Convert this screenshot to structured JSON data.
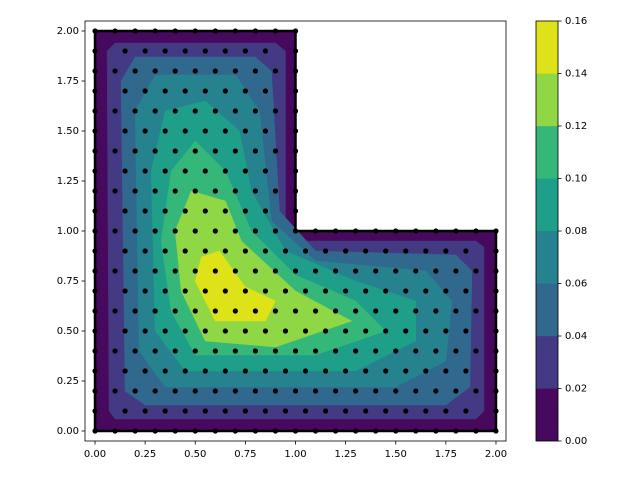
{
  "chart_data": {
    "type": "contour",
    "xlim": [
      -0.05,
      2.05
    ],
    "ylim": [
      -0.05,
      2.05
    ],
    "xticks": [
      {
        "value": 0,
        "label": "0.00"
      },
      {
        "value": 0.25,
        "label": "0.25"
      },
      {
        "value": 0.5,
        "label": "0.50"
      },
      {
        "value": 0.75,
        "label": "0.75"
      },
      {
        "value": 1,
        "label": "1.00"
      },
      {
        "value": 1.25,
        "label": "1.25"
      },
      {
        "value": 1.5,
        "label": "1.50"
      },
      {
        "value": 1.75,
        "label": "1.75"
      },
      {
        "value": 2,
        "label": "2.00"
      }
    ],
    "yticks": [
      {
        "value": 0,
        "label": "0.00"
      },
      {
        "value": 0.25,
        "label": "0.25"
      },
      {
        "value": 0.5,
        "label": "0.50"
      },
      {
        "value": 0.75,
        "label": "0.75"
      },
      {
        "value": 1,
        "label": "1.00"
      },
      {
        "value": 1.25,
        "label": "1.25"
      },
      {
        "value": 1.5,
        "label": "1.50"
      },
      {
        "value": 1.75,
        "label": "1.75"
      },
      {
        "value": 2,
        "label": "2.00"
      }
    ],
    "colorbar": {
      "lim": [
        0,
        0.16
      ],
      "ticks": [
        {
          "value": 0,
          "label": "0.00"
        },
        {
          "value": 0.02,
          "label": "0.02"
        },
        {
          "value": 0.04,
          "label": "0.04"
        },
        {
          "value": 0.06,
          "label": "0.06"
        },
        {
          "value": 0.08,
          "label": "0.08"
        },
        {
          "value": 0.1,
          "label": "0.10"
        },
        {
          "value": 0.12,
          "label": "0.12"
        },
        {
          "value": 0.14,
          "label": "0.14"
        },
        {
          "value": 0.16,
          "label": "0.16"
        }
      ]
    },
    "levels": [
      0,
      0.02,
      0.04,
      0.06,
      0.08,
      0.1,
      0.12,
      0.14,
      0.16
    ],
    "colors": [
      "#46095d",
      "#443983",
      "#31688e",
      "#26828e",
      "#1f9e89",
      "#35b779",
      "#8fd744",
      "#dde318"
    ],
    "regions": [
      {
        "x": [
          0,
          2,
          2,
          1,
          1,
          0
        ],
        "y": [
          0,
          0,
          1,
          1,
          2,
          2
        ]
      },
      {
        "x": [
          0.07,
          0.1,
          1.9,
          1.94,
          1.94,
          1.9,
          1.05,
          0.95,
          0.95,
          0.9,
          0.1,
          0.06
        ],
        "y": [
          0.1,
          0.06,
          0.06,
          0.1,
          0.92,
          0.95,
          0.95,
          1.05,
          1.9,
          1.94,
          1.94,
          1.9
        ]
      },
      {
        "x": [
          0.15,
          0.25,
          1.75,
          1.87,
          1.88,
          1.8,
          1.1,
          0.92,
          0.88,
          0.8,
          0.2,
          0.13
        ],
        "y": [
          0.2,
          0.13,
          0.13,
          0.22,
          0.8,
          0.88,
          0.9,
          1.1,
          1.8,
          1.87,
          1.87,
          1.75
        ]
      },
      {
        "x": [
          0.22,
          0.35,
          1.5,
          1.75,
          1.78,
          1.65,
          1.1,
          0.88,
          0.82,
          0.7,
          0.3,
          0.2
        ],
        "y": [
          0.4,
          0.22,
          0.22,
          0.35,
          0.65,
          0.8,
          0.85,
          1.05,
          1.6,
          1.78,
          1.78,
          1.6
        ]
      },
      {
        "x": [
          0.3,
          0.45,
          1.3,
          1.6,
          1.6,
          1.3,
          0.95,
          0.78,
          0.72,
          0.55,
          0.35,
          0.28
        ],
        "y": [
          0.5,
          0.3,
          0.3,
          0.45,
          0.65,
          0.75,
          0.9,
          1.2,
          1.5,
          1.65,
          1.6,
          1.3
        ]
      },
      {
        "x": [
          0.38,
          0.5,
          1.1,
          1.45,
          1.3,
          1.0,
          0.78,
          0.65,
          0.5,
          0.38,
          0.33
        ],
        "y": [
          0.6,
          0.38,
          0.38,
          0.5,
          0.65,
          0.78,
          1.0,
          1.3,
          1.45,
          1.3,
          0.95
        ]
      },
      {
        "x": [
          0.43,
          0.55,
          0.9,
          1.28,
          1.0,
          0.73,
          0.65,
          0.48,
          0.4
        ],
        "y": [
          0.7,
          0.45,
          0.42,
          0.55,
          0.7,
          0.95,
          1.15,
          1.2,
          1.0
        ]
      },
      {
        "x": [
          0.5,
          0.6,
          0.85,
          0.9,
          0.75,
          0.62,
          0.53
        ],
        "y": [
          0.75,
          0.55,
          0.55,
          0.65,
          0.72,
          0.9,
          0.87
        ]
      }
    ],
    "mesh_rows": [
      {
        "y": 0,
        "x": [
          0,
          0.1,
          0.2,
          0.3,
          0.4,
          0.5,
          0.6,
          0.7,
          0.8,
          0.9,
          1,
          1.1,
          1.2,
          1.3,
          1.4,
          1.5,
          1.6,
          1.7,
          1.8,
          1.9,
          2
        ]
      },
      {
        "y": 0.1,
        "x": [
          0,
          0.15,
          0.25,
          0.35,
          0.45,
          0.55,
          0.65,
          0.75,
          0.85,
          0.95,
          1.05,
          1.15,
          1.25,
          1.35,
          1.45,
          1.55,
          1.65,
          1.75,
          1.85,
          2
        ]
      },
      {
        "y": 0.2,
        "x": [
          0,
          0.1,
          0.2,
          0.3,
          0.4,
          0.5,
          0.6,
          0.7,
          0.8,
          0.9,
          1,
          1.1,
          1.2,
          1.3,
          1.4,
          1.5,
          1.6,
          1.7,
          1.8,
          1.9,
          2
        ]
      },
      {
        "y": 0.3,
        "x": [
          0,
          0.15,
          0.25,
          0.35,
          0.45,
          0.55,
          0.65,
          0.75,
          0.85,
          0.95,
          1.05,
          1.15,
          1.25,
          1.35,
          1.45,
          1.55,
          1.65,
          1.75,
          1.85,
          2
        ]
      },
      {
        "y": 0.4,
        "x": [
          0,
          0.1,
          0.2,
          0.3,
          0.4,
          0.5,
          0.6,
          0.7,
          0.8,
          0.9,
          1,
          1.1,
          1.2,
          1.3,
          1.4,
          1.5,
          1.6,
          1.7,
          1.8,
          1.9,
          2
        ]
      },
      {
        "y": 0.5,
        "x": [
          0,
          0.15,
          0.25,
          0.35,
          0.45,
          0.55,
          0.65,
          0.75,
          0.85,
          0.95,
          1.05,
          1.15,
          1.25,
          1.35,
          1.45,
          1.55,
          1.65,
          1.75,
          1.85,
          2
        ]
      },
      {
        "y": 0.6,
        "x": [
          0,
          0.1,
          0.2,
          0.3,
          0.4,
          0.5,
          0.6,
          0.7,
          0.8,
          0.9,
          1,
          1.1,
          1.2,
          1.3,
          1.4,
          1.5,
          1.6,
          1.7,
          1.8,
          1.9,
          2
        ]
      },
      {
        "y": 0.7,
        "x": [
          0,
          0.15,
          0.25,
          0.35,
          0.45,
          0.55,
          0.65,
          0.75,
          0.85,
          0.95,
          1.05,
          1.15,
          1.25,
          1.35,
          1.45,
          1.55,
          1.65,
          1.75,
          1.85,
          2
        ]
      },
      {
        "y": 0.8,
        "x": [
          0,
          0.1,
          0.2,
          0.3,
          0.4,
          0.5,
          0.6,
          0.7,
          0.8,
          0.9,
          1,
          1.1,
          1.2,
          1.3,
          1.4,
          1.5,
          1.6,
          1.7,
          1.8,
          1.9,
          2
        ]
      },
      {
        "y": 0.9,
        "x": [
          0,
          0.15,
          0.25,
          0.35,
          0.45,
          0.55,
          0.65,
          0.75,
          0.85,
          0.95,
          1.05,
          1.15,
          1.25,
          1.35,
          1.45,
          1.55,
          1.65,
          1.75,
          1.85,
          2
        ]
      },
      {
        "y": 1,
        "x": [
          0,
          0.1,
          0.2,
          0.3,
          0.4,
          0.5,
          0.6,
          0.7,
          0.8,
          0.9,
          1,
          1.1,
          1.2,
          1.3,
          1.4,
          1.5,
          1.6,
          1.7,
          1.8,
          1.9,
          2
        ]
      },
      {
        "y": 1.1,
        "x": [
          0,
          0.15,
          0.25,
          0.35,
          0.45,
          0.55,
          0.65,
          0.75,
          0.85,
          1
        ]
      },
      {
        "y": 1.2,
        "x": [
          0,
          0.1,
          0.2,
          0.3,
          0.4,
          0.5,
          0.6,
          0.7,
          0.8,
          0.9,
          1
        ]
      },
      {
        "y": 1.3,
        "x": [
          0,
          0.15,
          0.25,
          0.35,
          0.45,
          0.55,
          0.65,
          0.75,
          0.85,
          1
        ]
      },
      {
        "y": 1.4,
        "x": [
          0,
          0.1,
          0.2,
          0.3,
          0.4,
          0.5,
          0.6,
          0.7,
          0.8,
          0.9,
          1
        ]
      },
      {
        "y": 1.5,
        "x": [
          0,
          0.15,
          0.25,
          0.35,
          0.45,
          0.55,
          0.65,
          0.75,
          0.85,
          1
        ]
      },
      {
        "y": 1.6,
        "x": [
          0,
          0.1,
          0.2,
          0.3,
          0.4,
          0.5,
          0.6,
          0.7,
          0.8,
          0.9,
          1
        ]
      },
      {
        "y": 1.7,
        "x": [
          0,
          0.15,
          0.25,
          0.35,
          0.45,
          0.55,
          0.65,
          0.75,
          0.85,
          1
        ]
      },
      {
        "y": 1.8,
        "x": [
          0,
          0.1,
          0.2,
          0.3,
          0.4,
          0.5,
          0.6,
          0.7,
          0.8,
          0.9,
          1
        ]
      },
      {
        "y": 1.9,
        "x": [
          0,
          0.15,
          0.25,
          0.35,
          0.45,
          0.55,
          0.65,
          0.75,
          0.85,
          1
        ]
      },
      {
        "y": 2,
        "x": [
          0,
          0.1,
          0.2,
          0.3,
          0.4,
          0.5,
          0.6,
          0.7,
          0.8,
          0.9,
          1
        ]
      }
    ]
  }
}
